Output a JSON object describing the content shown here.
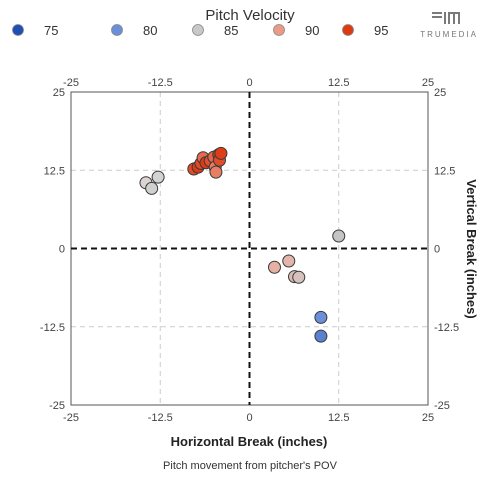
{
  "header": {
    "brand_text": "TRUMEDIA"
  },
  "chart_data": {
    "type": "scatter",
    "title": "Pitch Velocity",
    "xlabel": "Horizontal Break (inches)",
    "ylabel": "Vertical Break (inches)",
    "caption": "Pitch movement from pitcher's POV",
    "xlim": [
      -25,
      25
    ],
    "ylim": [
      -25,
      25
    ],
    "x_ticks": [
      "-25",
      "-12.5",
      "0",
      "12.5",
      "25"
    ],
    "y_ticks": [
      "25",
      "12.5",
      "0",
      "-12.5",
      "-25"
    ],
    "x_tick_values": [
      -25,
      -12.5,
      0,
      12.5,
      25
    ],
    "y_tick_values": [
      25,
      12.5,
      0,
      -12.5,
      -25
    ],
    "grid": true,
    "legend_position": "top",
    "legend": [
      {
        "label": "75",
        "color": "#1f4fb5"
      },
      {
        "label": "80",
        "color": "#6b8fd8"
      },
      {
        "label": "85",
        "color": "#c8c8c8"
      },
      {
        "label": "90",
        "color": "#eb9a87"
      },
      {
        "label": "95",
        "color": "#de3a12"
      }
    ],
    "points": [
      {
        "x": -14.5,
        "y": 10.5,
        "velocity": 85,
        "color": "#dcd3d2"
      },
      {
        "x": -13.7,
        "y": 9.6,
        "velocity": 85,
        "color": "#d0d0d0"
      },
      {
        "x": -12.8,
        "y": 11.4,
        "velocity": 85,
        "color": "#d3d3d3"
      },
      {
        "x": 12.5,
        "y": 2.0,
        "velocity": 84,
        "color": "#c4c4c4"
      },
      {
        "x": 3.5,
        "y": -3.0,
        "velocity": 89,
        "color": "#e6b0a3"
      },
      {
        "x": 5.5,
        "y": -2.0,
        "velocity": 88,
        "color": "#e3b6ab"
      },
      {
        "x": 6.3,
        "y": -4.5,
        "velocity": 87,
        "color": "#dcbab4"
      },
      {
        "x": 6.9,
        "y": -4.6,
        "velocity": 87,
        "color": "#d6c2bd"
      },
      {
        "x": 10.0,
        "y": -11.0,
        "velocity": 80,
        "color": "#6b8fd8"
      },
      {
        "x": 10.0,
        "y": -14.0,
        "velocity": 79,
        "color": "#5a80d0"
      },
      {
        "x": -7.8,
        "y": 12.7,
        "velocity": 94,
        "color": "#e04d2c"
      },
      {
        "x": -7.2,
        "y": 13.0,
        "velocity": 95,
        "color": "#dc3c16"
      },
      {
        "x": -6.8,
        "y": 13.6,
        "velocity": 94,
        "color": "#e04a28"
      },
      {
        "x": -6.5,
        "y": 14.5,
        "velocity": 93,
        "color": "#e56a4e"
      },
      {
        "x": -6.1,
        "y": 13.7,
        "velocity": 95,
        "color": "#dc3a12"
      },
      {
        "x": -5.5,
        "y": 14.0,
        "velocity": 94,
        "color": "#e04f2e"
      },
      {
        "x": -5.0,
        "y": 14.6,
        "velocity": 93,
        "color": "#e46448"
      },
      {
        "x": -4.8,
        "y": 13.0,
        "velocity": 92,
        "color": "#e77a60"
      },
      {
        "x": -4.7,
        "y": 12.2,
        "velocity": 92,
        "color": "#e87e64"
      },
      {
        "x": -4.3,
        "y": 15.0,
        "velocity": 95,
        "color": "#dc3a12"
      },
      {
        "x": -4.2,
        "y": 14.1,
        "velocity": 94,
        "color": "#e04d2c"
      },
      {
        "x": -4.0,
        "y": 15.2,
        "velocity": 95,
        "color": "#dd3e18"
      }
    ]
  }
}
